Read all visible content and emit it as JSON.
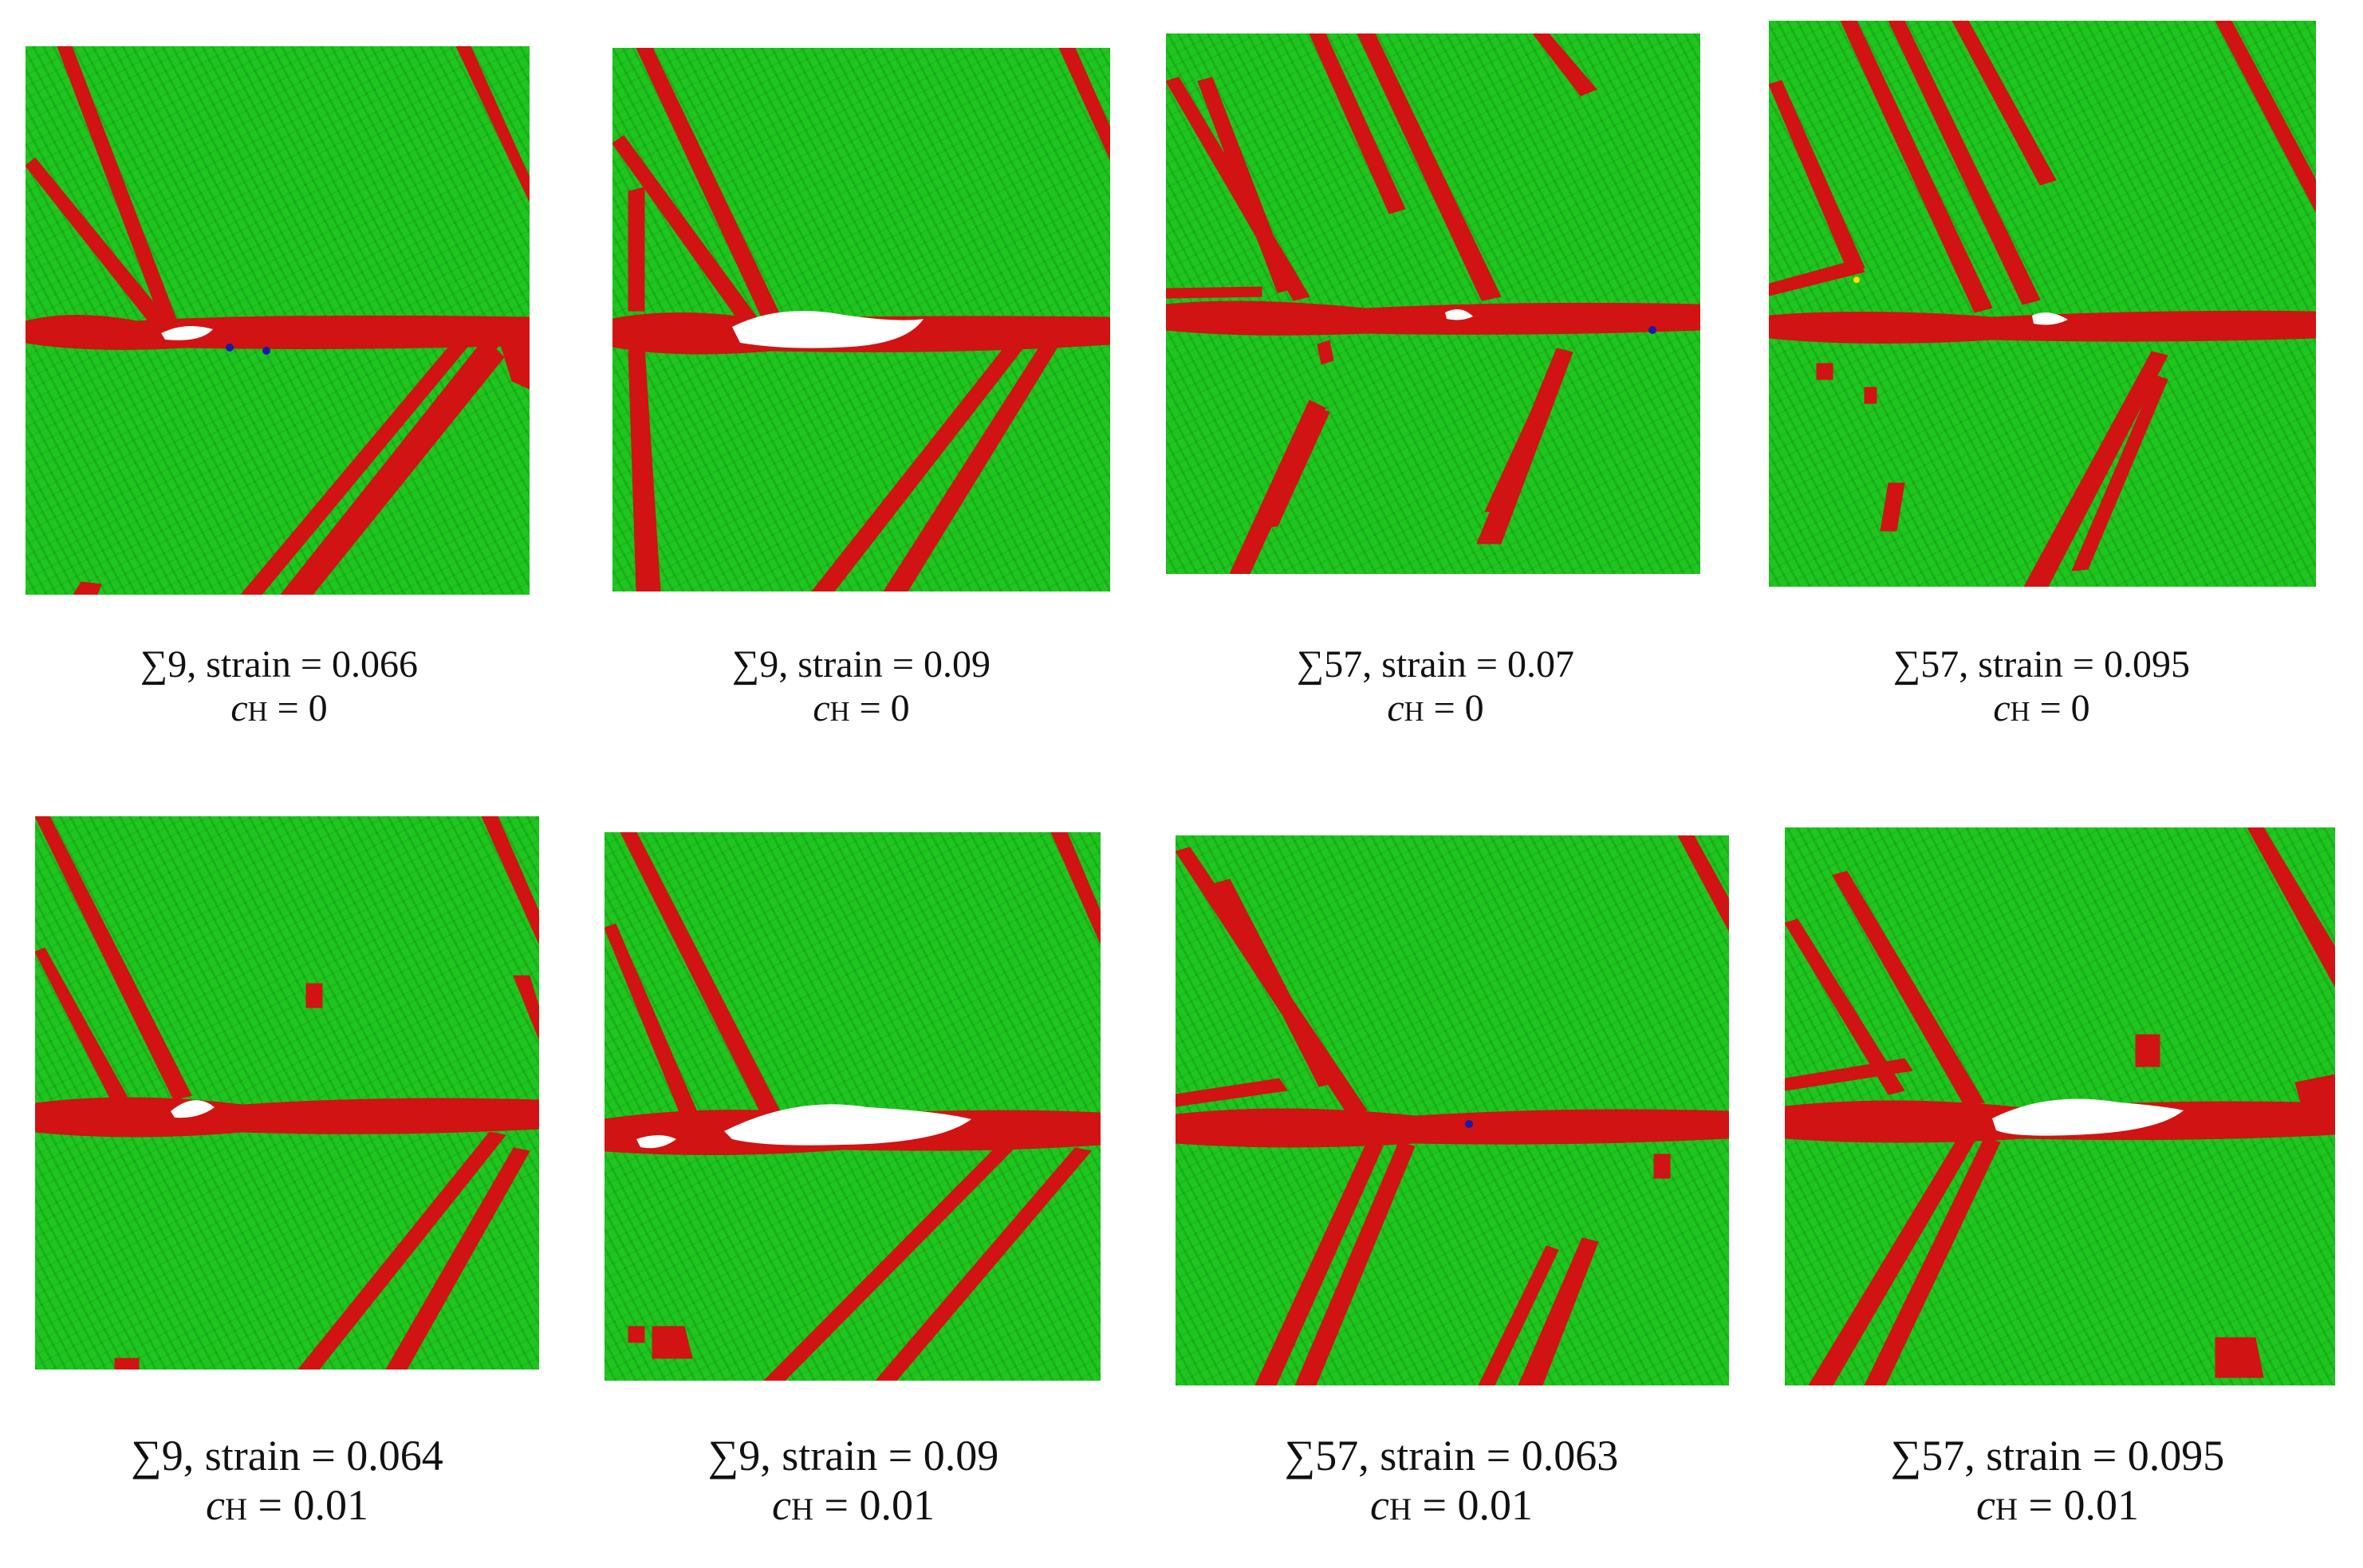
{
  "colors": {
    "fcc_atoms": "#1fc61f",
    "defect_atoms": "#d11313",
    "void": "#ffffff",
    "hydrogen_atoms": "#1a1aa8"
  },
  "panels": [
    {
      "name": "sigma9-strain-0066-ch-0",
      "line1": "∑9, strain = 0.066",
      "ch_symbol": "c",
      "ch_sub": "H",
      "ch_value": " = 0"
    },
    {
      "name": "sigma9-strain-009-ch-0",
      "line1": "∑9, strain = 0.09",
      "ch_symbol": "c",
      "ch_sub": "H",
      "ch_value": " = 0"
    },
    {
      "name": "sigma57-strain-007-ch-0",
      "line1": "∑57, strain = 0.07",
      "ch_symbol": "c",
      "ch_sub": "H",
      "ch_value": " = 0"
    },
    {
      "name": "sigma57-strain-0095-ch-0",
      "line1": "∑57, strain = 0.095",
      "ch_symbol": "c",
      "ch_sub": "H",
      "ch_value": " = 0"
    },
    {
      "name": "sigma9-strain-0064-ch-001",
      "line1": "∑9, strain = 0.064",
      "ch_symbol": "c",
      "ch_sub": "H",
      "ch_value": " = 0.01"
    },
    {
      "name": "sigma9-strain-009-ch-001",
      "line1": "∑9, strain = 0.09",
      "ch_symbol": "c",
      "ch_sub": "H",
      "ch_value": " = 0.01"
    },
    {
      "name": "sigma57-strain-0063-ch-001",
      "line1": "∑57, strain = 0.063",
      "ch_symbol": "c",
      "ch_sub": "H",
      "ch_value": " = 0.01"
    },
    {
      "name": "sigma57-strain-0095-ch-001",
      "line1": "∑57, strain = 0.095",
      "ch_symbol": "c",
      "ch_sub": "H",
      "ch_value": " = 0.01"
    }
  ]
}
